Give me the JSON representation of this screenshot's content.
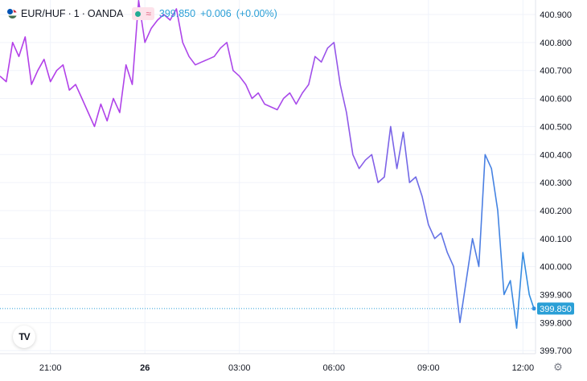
{
  "header": {
    "symbol": "EUR/HUF",
    "interval": "1",
    "source": "OANDA",
    "separator": "·",
    "price": "399.850",
    "change": "+0.006",
    "change_pct": "(+0.00%)",
    "status_icon": "wave-icon"
  },
  "current_price_label": "399.850",
  "logo_text": "TV",
  "colors": {
    "line_start": "#b43ee8",
    "line_end": "#2f8fe0",
    "price_tag": "#2a9fd6",
    "grid": "#f0f3fa",
    "axis_text": "#131722"
  },
  "chart_data": {
    "type": "line",
    "y_ticks": [
      "400.900",
      "400.800",
      "400.700",
      "400.600",
      "400.500",
      "400.400",
      "400.300",
      "400.200",
      "400.100",
      "400.000",
      "399.900",
      "399.800",
      "399.700"
    ],
    "x_ticks": [
      "21:00",
      "26",
      "03:00",
      "06:00",
      "09:00",
      "12:00"
    ],
    "ylim": [
      399.7,
      400.9
    ],
    "x_range_hours": [
      -4.6,
      12.4
    ],
    "x_tick_hours": [
      -3,
      0,
      3,
      6,
      9,
      12
    ],
    "last_price": 399.85,
    "x": [
      -4.6,
      -4.4,
      -4.2,
      -4.0,
      -3.8,
      -3.6,
      -3.4,
      -3.2,
      -3.0,
      -2.8,
      -2.6,
      -2.4,
      -2.2,
      -2.0,
      -1.8,
      -1.6,
      -1.4,
      -1.2,
      -1.0,
      -0.8,
      -0.6,
      -0.4,
      -0.2,
      0.0,
      0.2,
      0.4,
      0.6,
      0.8,
      1.0,
      1.2,
      1.4,
      1.6,
      1.8,
      2.0,
      2.2,
      2.4,
      2.6,
      2.8,
      3.0,
      3.2,
      3.4,
      3.6,
      3.8,
      4.0,
      4.2,
      4.4,
      4.6,
      4.8,
      5.0,
      5.2,
      5.4,
      5.6,
      5.8,
      6.0,
      6.2,
      6.4,
      6.6,
      6.8,
      7.0,
      7.2,
      7.4,
      7.6,
      7.8,
      8.0,
      8.2,
      8.4,
      8.6,
      8.8,
      9.0,
      9.2,
      9.4,
      9.6,
      9.8,
      10.0,
      10.2,
      10.4,
      10.6,
      10.8,
      11.0,
      11.2,
      11.4,
      11.6,
      11.8,
      12.0,
      12.2,
      12.35
    ],
    "y": [
      400.68,
      400.66,
      400.8,
      400.75,
      400.82,
      400.65,
      400.7,
      400.74,
      400.66,
      400.7,
      400.72,
      400.63,
      400.65,
      400.6,
      400.55,
      400.5,
      400.58,
      400.52,
      400.6,
      400.55,
      400.72,
      400.65,
      400.95,
      400.8,
      400.85,
      400.88,
      400.9,
      400.88,
      400.92,
      400.8,
      400.75,
      400.72,
      400.73,
      400.74,
      400.75,
      400.78,
      400.8,
      400.7,
      400.68,
      400.65,
      400.6,
      400.62,
      400.58,
      400.57,
      400.56,
      400.6,
      400.62,
      400.58,
      400.62,
      400.65,
      400.75,
      400.73,
      400.78,
      400.8,
      400.65,
      400.55,
      400.4,
      400.35,
      400.38,
      400.4,
      400.3,
      400.32,
      400.5,
      400.35,
      400.48,
      400.3,
      400.32,
      400.25,
      400.15,
      400.1,
      400.12,
      400.05,
      400.0,
      399.8,
      399.95,
      400.1,
      400.0,
      400.4,
      400.35,
      400.2,
      399.9,
      399.95,
      399.78,
      400.05,
      399.9,
      399.85
    ]
  }
}
